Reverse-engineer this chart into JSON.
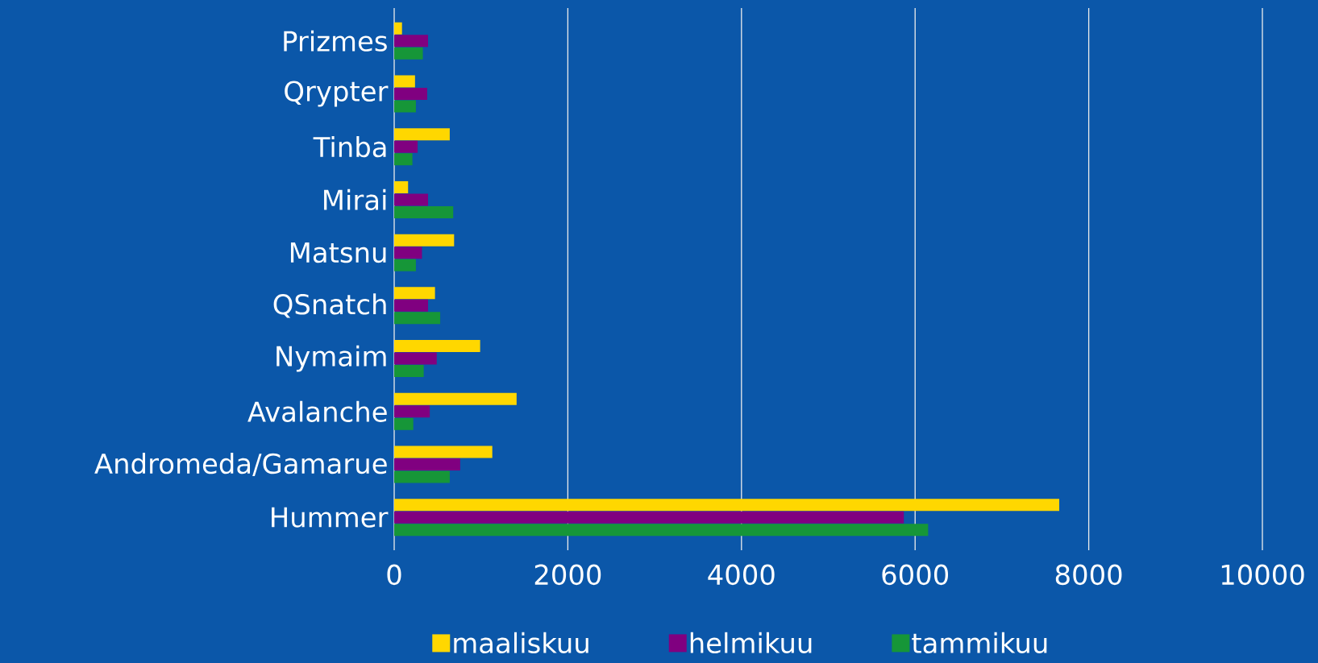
{
  "chart_data": {
    "type": "bar",
    "orientation": "horizontal",
    "categories": [
      "Prizmes",
      "Qrypter",
      "Tinba",
      "Mirai",
      "Matsnu",
      "QSnatch",
      "Nymaim",
      "Avalanche",
      "Andromeda/Gamarue",
      "Hummer"
    ],
    "series": [
      {
        "name": "maaliskuu",
        "color": "#ffd700",
        "values": [
          90,
          240,
          640,
          160,
          690,
          470,
          990,
          1410,
          1130,
          7660
        ]
      },
      {
        "name": "helmikuu",
        "color": "#800080",
        "values": [
          390,
          380,
          270,
          390,
          320,
          390,
          490,
          410,
          760,
          5870
        ]
      },
      {
        "name": "tammikuu",
        "color": "#169638",
        "values": [
          330,
          250,
          210,
          680,
          250,
          530,
          340,
          220,
          640,
          6150
        ]
      }
    ],
    "xlim": [
      0,
      10000
    ],
    "xticks": [
      0,
      2000,
      4000,
      6000,
      8000,
      10000
    ],
    "grid": "x",
    "legend": "bottom"
  }
}
